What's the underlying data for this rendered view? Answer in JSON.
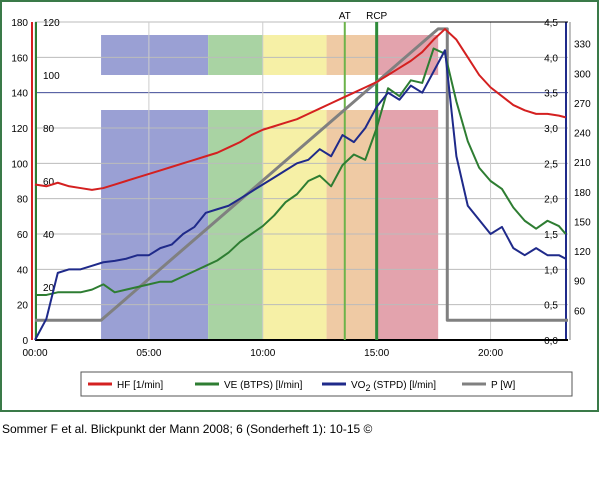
{
  "chart_data": {
    "type": "line",
    "xlabel": "",
    "x_ticks": [
      "00:00",
      "05:00",
      "10:00",
      "15:00",
      "20:00"
    ],
    "xlim_min": [
      0,
      23.4
    ],
    "axes": {
      "hf": {
        "ticks": [
          0,
          20,
          40,
          60,
          80,
          100,
          120,
          140,
          160,
          180
        ],
        "range": [
          0,
          180
        ],
        "color": "#d42020"
      },
      "ve": {
        "ticks": [
          20,
          40,
          60,
          80,
          100,
          120
        ],
        "range": [
          0,
          120
        ],
        "color": "#2e7d32"
      },
      "vo2": {
        "ticks": [
          "0,0",
          "0,5",
          "1,0",
          "1,5",
          "2,0",
          "2,5",
          "3,0",
          "3,5",
          "4,0",
          "4,5"
        ],
        "range": [
          0,
          4.5
        ],
        "color": "#1f2a8a"
      },
      "p": {
        "ticks": [
          60,
          90,
          120,
          150,
          180,
          210,
          240,
          270,
          300,
          330
        ],
        "range": [
          30,
          352
        ],
        "color": "#808080"
      }
    },
    "zones": [
      {
        "from": 2.9,
        "to": 7.6,
        "color": "#9aa0d4"
      },
      {
        "from": 7.6,
        "to": 10.0,
        "color": "#a9d3a3"
      },
      {
        "from": 10.0,
        "to": 12.8,
        "color": "#f6f0a6"
      },
      {
        "from": 12.8,
        "to": 15.0,
        "color": "#efcaa4"
      },
      {
        "from": 15.0,
        "to": 17.7,
        "color": "#e3a3ad"
      }
    ],
    "markers": [
      {
        "label": "AT",
        "x": 13.6
      },
      {
        "label": "RCP",
        "x": 15.0
      }
    ],
    "t": [
      0,
      0.5,
      1,
      1.5,
      2,
      2.5,
      3,
      3.5,
      4,
      4.5,
      5,
      5.5,
      6,
      6.5,
      7,
      7.5,
      8,
      8.5,
      9,
      9.5,
      10,
      10.5,
      11,
      11.5,
      12,
      12.5,
      13,
      13.5,
      14,
      14.5,
      15,
      15.5,
      16,
      16.5,
      17,
      17.5,
      18,
      18.5,
      19,
      19.5,
      20,
      20.5,
      21,
      21.5,
      22,
      22.5,
      23,
      23.3
    ],
    "series": [
      {
        "name": "HF [1/min]",
        "axis": "hf",
        "values": [
          88,
          87,
          89,
          87,
          86,
          85,
          86,
          88,
          90,
          92,
          94,
          96,
          98,
          100,
          102,
          104,
          106,
          109,
          112,
          116,
          119,
          121,
          123,
          125,
          128,
          131,
          134,
          137,
          140,
          143,
          146,
          150,
          154,
          158,
          163,
          170,
          176,
          170,
          160,
          150,
          143,
          138,
          133,
          130,
          128,
          128,
          127,
          126
        ]
      },
      {
        "name": "VE (BTPS) [l/min]",
        "axis": "ve",
        "values": [
          17,
          17,
          18,
          18,
          18,
          19,
          21,
          18,
          19,
          20,
          21,
          22,
          22,
          24,
          26,
          28,
          30,
          33,
          37,
          40,
          43,
          47,
          52,
          55,
          60,
          62,
          58,
          66,
          70,
          68,
          80,
          95,
          92,
          98,
          97,
          110,
          108,
          90,
          75,
          65,
          60,
          57,
          50,
          45,
          42,
          45,
          43,
          40
        ]
      },
      {
        "name": "VO2 (STPD) [l/min]",
        "axis": "vo2",
        "values": [
          0,
          0.3,
          0.95,
          1.0,
          1.0,
          1.05,
          1.1,
          1.12,
          1.15,
          1.2,
          1.2,
          1.3,
          1.35,
          1.5,
          1.6,
          1.8,
          1.85,
          1.9,
          2.0,
          2.1,
          2.2,
          2.3,
          2.4,
          2.5,
          2.55,
          2.7,
          2.6,
          2.9,
          2.8,
          3.0,
          3.3,
          3.5,
          3.4,
          3.6,
          3.5,
          3.8,
          4.1,
          2.6,
          1.9,
          1.7,
          1.5,
          1.6,
          1.3,
          1.2,
          1.3,
          1.2,
          1.2,
          1.15
        ]
      },
      {
        "name": "P [W]",
        "axis": "p",
        "points": [
          [
            0,
            50
          ],
          [
            2.9,
            50
          ],
          [
            17.7,
            345
          ],
          [
            18.1,
            345
          ],
          [
            18.1,
            50
          ],
          [
            23.4,
            50
          ]
        ]
      }
    ],
    "legend": {
      "placement": "bottom",
      "items": [
        {
          "label": "HF [1/min]",
          "color": "#d42020"
        },
        {
          "label": "VE (BTPS) [l/min]",
          "color": "#2e7d32"
        },
        {
          "label": "VO",
          "sub": "2",
          "rest": " (STPD) [l/min]",
          "color": "#1f2a8a"
        },
        {
          "label": "P [W]",
          "color": "#808080"
        }
      ]
    }
  },
  "source": "Sommer F et al. Blickpunkt der Mann 2008; 6 (Sonderheft 1): 10-15 ©"
}
